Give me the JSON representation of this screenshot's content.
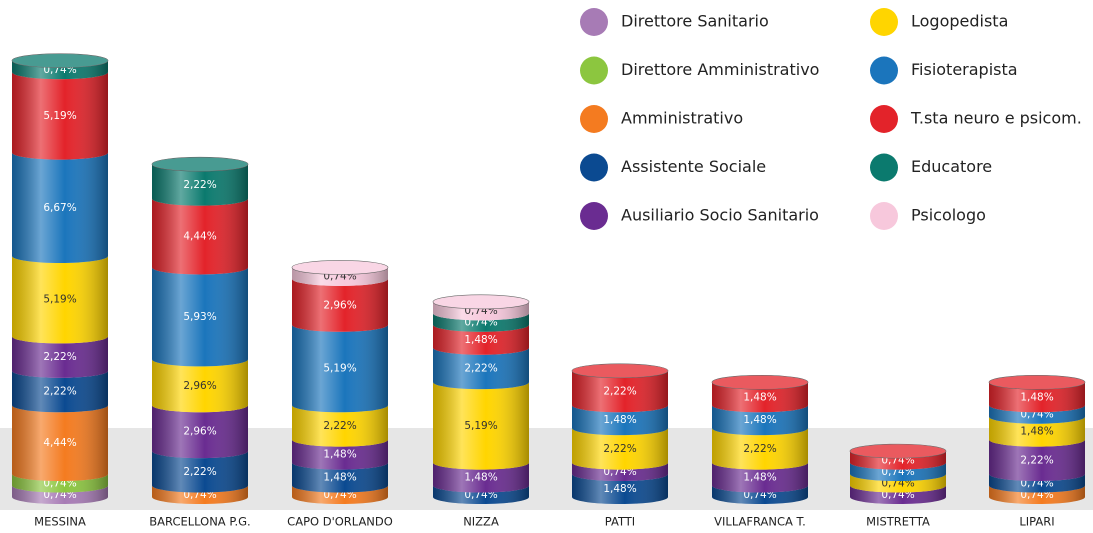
{
  "chart_data": {
    "type": "bar",
    "stacked": true,
    "categories": [
      "MESSINA",
      "BARCELLONA P.G.",
      "CAPO D'ORLANDO",
      "NIZZA",
      "PATTI",
      "VILLAFRANCA T.",
      "MISTRETTA",
      "LIPARI"
    ],
    "series": [
      {
        "name": "Direttore Sanitario",
        "color": "#a77bb5",
        "values": [
          0.74,
          null,
          null,
          null,
          null,
          null,
          null,
          null
        ],
        "value_labels": [
          "0,74%",
          null,
          null,
          null,
          null,
          null,
          null,
          null
        ]
      },
      {
        "name": "Direttore Amministrativo",
        "color": "#8cc63f",
        "values": [
          0.74,
          null,
          null,
          null,
          null,
          null,
          null,
          null
        ],
        "value_labels": [
          "0,74%",
          null,
          null,
          null,
          null,
          null,
          null,
          null
        ]
      },
      {
        "name": "Amministrativo",
        "color": "#f47b20",
        "values": [
          4.44,
          0.74,
          0.74,
          null,
          null,
          null,
          null,
          0.74
        ],
        "value_labels": [
          "4,44%",
          "0,74%",
          "0,74%",
          null,
          null,
          null,
          null,
          "0,74%"
        ]
      },
      {
        "name": "Assistente Sociale",
        "color": "#0b4a91",
        "values": [
          2.22,
          2.22,
          1.48,
          0.74,
          1.48,
          0.74,
          null,
          0.74
        ],
        "value_labels": [
          "2,22%",
          "2,22%",
          "1,48%",
          "0,74%",
          "1,48%",
          "0,74%",
          null,
          "0,74%"
        ]
      },
      {
        "name": "Ausiliario Socio Sanitario",
        "color": "#6a2c91",
        "values": [
          2.22,
          2.96,
          1.48,
          1.48,
          0.74,
          1.48,
          0.74,
          2.22
        ],
        "value_labels": [
          "2,22%",
          "2,96%",
          "1,48%",
          "1,48%",
          "0,74%",
          "1,48%",
          "0,74%",
          "2,22%"
        ]
      },
      {
        "name": "Logopedista",
        "color": "#ffd500",
        "values": [
          5.19,
          2.96,
          2.22,
          5.19,
          2.22,
          2.22,
          0.74,
          1.48
        ],
        "value_labels": [
          "5,19%",
          "2,96%",
          "2,22%",
          "5,19%",
          "2,22%",
          "2,22%",
          "0,74%",
          "1,48%"
        ]
      },
      {
        "name": "Fisioterapista",
        "color": "#1b75bc",
        "values": [
          6.67,
          5.93,
          5.19,
          2.22,
          1.48,
          1.48,
          0.74,
          0.74
        ],
        "value_labels": [
          "6,67%",
          "5,93%",
          "5,19%",
          "2,22%",
          "1,48%",
          "1,48%",
          "0,74%",
          "0,74%"
        ]
      },
      {
        "name": "T.sta neuro e psicom.",
        "color": "#e3232a",
        "values": [
          5.19,
          4.44,
          2.96,
          1.48,
          2.22,
          1.48,
          0.74,
          1.48
        ],
        "value_labels": [
          "5,19%",
          "4,44%",
          "2,96%",
          "1,48%",
          "2,22%",
          "1,48%",
          "0,74%",
          "1,48%"
        ]
      },
      {
        "name": "Educatore",
        "color": "#0b7a6e",
        "values": [
          0.74,
          2.22,
          null,
          0.74,
          null,
          null,
          null,
          null
        ],
        "value_labels": [
          "0,74%",
          "2,22%",
          null,
          "0,74%",
          null,
          null,
          null,
          null
        ]
      },
      {
        "name": "Psicologo",
        "color": "#f7c8dc",
        "values": [
          null,
          null,
          0.74,
          0.74,
          null,
          null,
          null,
          null
        ],
        "value_labels": [
          null,
          null,
          "0,74%",
          "0,74%",
          null,
          null,
          null,
          null
        ]
      }
    ]
  }
}
